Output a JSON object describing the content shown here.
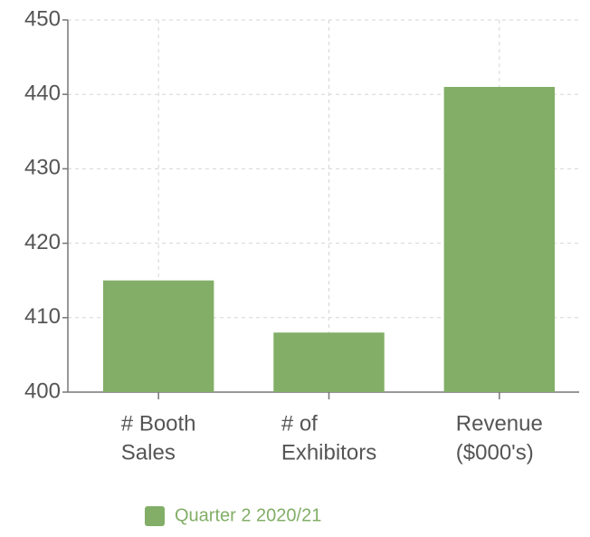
{
  "chart_data": {
    "type": "bar",
    "categories": [
      [
        "# Booth",
        "Sales"
      ],
      [
        "# of",
        "Exhibitors"
      ],
      [
        "Revenue",
        "($000's)"
      ]
    ],
    "series": [
      {
        "name": "Quarter 2 2020/21",
        "color": "#82ae67",
        "values": [
          415,
          408,
          441
        ]
      }
    ],
    "ylim": [
      400,
      450
    ],
    "yticks": [
      400,
      410,
      420,
      430,
      440,
      450
    ],
    "grid": true,
    "legend": "bottom"
  }
}
